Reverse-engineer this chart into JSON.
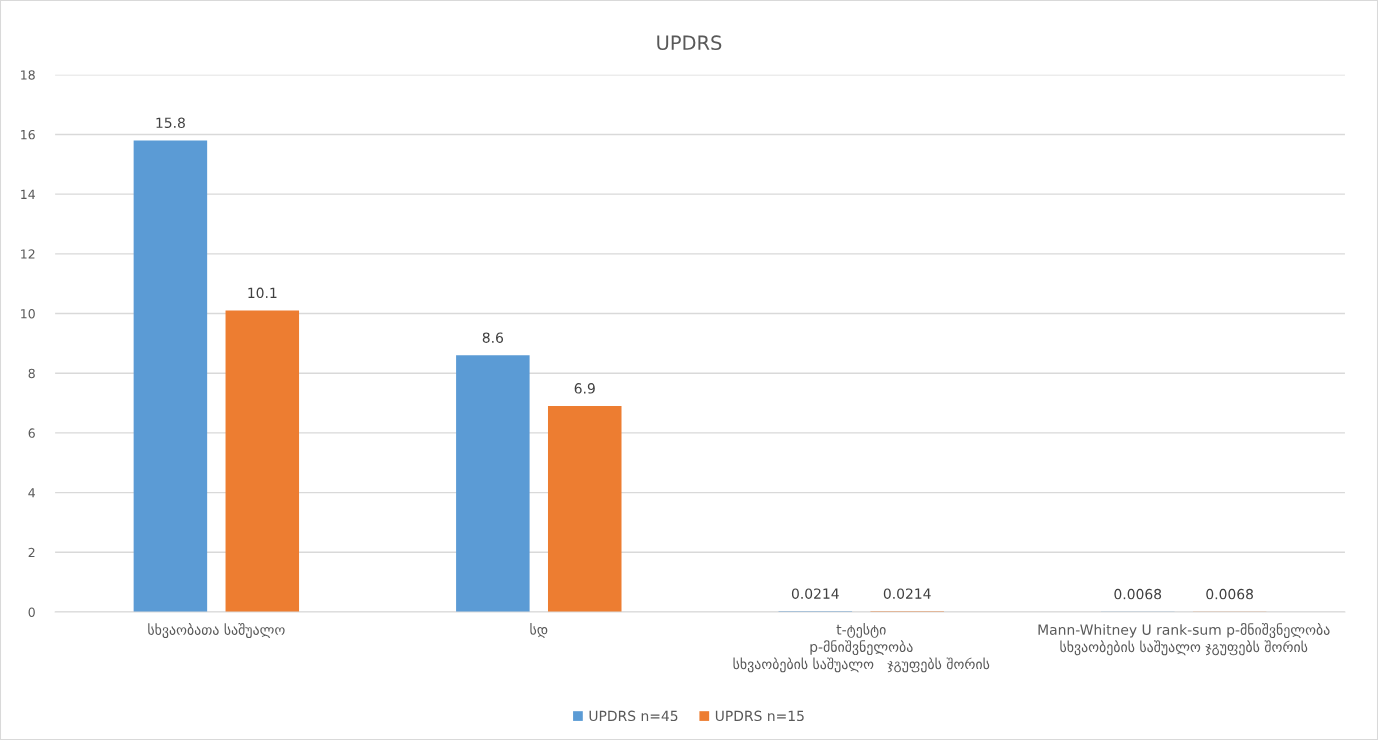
{
  "chart_data": {
    "type": "bar",
    "title": "UPDRS",
    "categories": [
      "სხვაობათა საშუალო",
      "სდ",
      "t-ტესტი\np-მნიშვნელობა\nსხვაობების საშუალო   ჯგუფებს შორის",
      "Mann-Whitney U rank-sum p-მნიშვნელობა\nსხვაობების საშუალო ჯგუფებს შორის"
    ],
    "series": [
      {
        "name": "UPDRS n=45",
        "color": "#5b9bd5",
        "values": [
          15.8,
          8.6,
          0.0214,
          0.0068
        ]
      },
      {
        "name": "UPDRS n=15",
        "color": "#ed7d31",
        "values": [
          10.1,
          6.9,
          0.0214,
          0.0068
        ]
      }
    ],
    "ylim": [
      0,
      18
    ],
    "yticks": [
      0,
      2,
      4,
      6,
      8,
      10,
      12,
      14,
      16,
      18
    ],
    "grid": "y",
    "legend": "bottom",
    "data_labels": true
  }
}
